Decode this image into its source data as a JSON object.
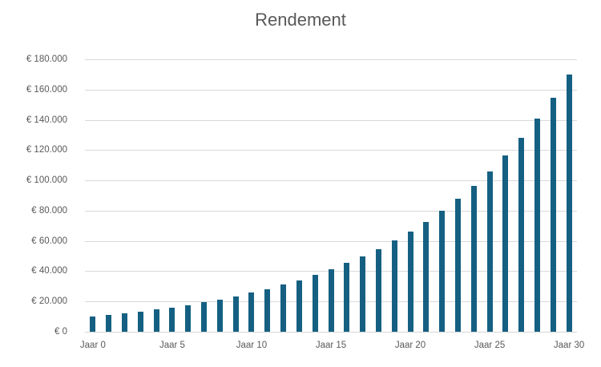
{
  "colors": {
    "bar": "#156082",
    "gridline": "#d9d9d9",
    "axis_line": "#d6d6d6",
    "axis_text": "#595959",
    "title_text": "#595959"
  },
  "chart_data": {
    "type": "bar",
    "title": "Rendement",
    "categories": [
      "Jaar 0",
      "Jaar 1",
      "Jaar 2",
      "Jaar 3",
      "Jaar 4",
      "Jaar 5",
      "Jaar 6",
      "Jaar 7",
      "Jaar 8",
      "Jaar 9",
      "Jaar 10",
      "Jaar 11",
      "Jaar 12",
      "Jaar 13",
      "Jaar 14",
      "Jaar 15",
      "Jaar 16",
      "Jaar 17",
      "Jaar 18",
      "Jaar 19",
      "Jaar 20",
      "Jaar 21",
      "Jaar 22",
      "Jaar 23",
      "Jaar 24",
      "Jaar 25",
      "Jaar 26",
      "Jaar 27",
      "Jaar 28",
      "Jaar 29",
      "Jaar 30"
    ],
    "values": [
      10000,
      11000,
      12100,
      13300,
      14600,
      16000,
      17600,
      19400,
      21300,
      23400,
      25700,
      28200,
      31000,
      34100,
      37500,
      41200,
      45300,
      49800,
      54700,
      60100,
      66100,
      72600,
      79800,
      87700,
      96400,
      105900,
      116400,
      127900,
      140600,
      154500,
      169800
    ],
    "xlabel": "",
    "ylabel": "",
    "ylim": [
      0,
      180000
    ],
    "y_ticks": [
      0,
      20000,
      40000,
      60000,
      80000,
      100000,
      120000,
      140000,
      160000,
      180000
    ],
    "y_tick_labels": [
      "€ 0",
      "€ 20.000",
      "€ 40.000",
      "€ 60.000",
      "€ 80.000",
      "€ 100.000",
      "€ 120.000",
      "€ 140.000",
      "€ 160.000",
      "€ 180.000"
    ],
    "x_tick_labels": [
      "Jaar 0",
      "Jaar 5",
      "Jaar 10",
      "Jaar 15",
      "Jaar 20",
      "Jaar 25",
      "Jaar 30"
    ],
    "x_tick_interval": 5,
    "grid": true,
    "legend": false
  }
}
